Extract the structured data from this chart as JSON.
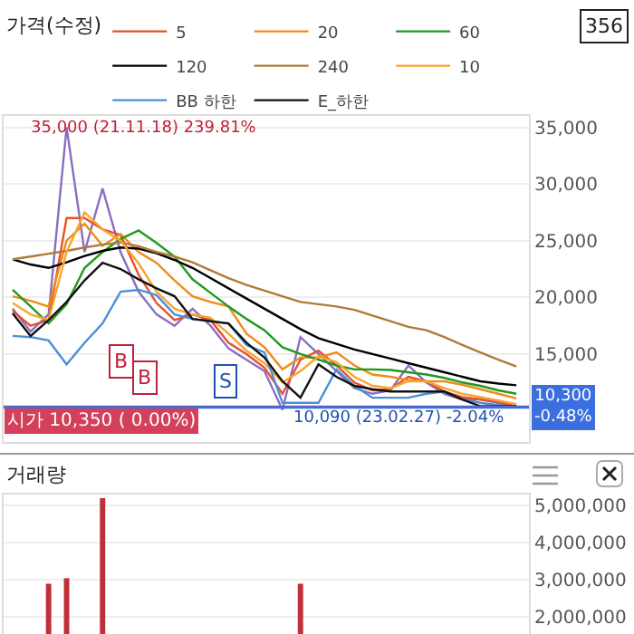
{
  "chart_data": [
    {
      "type": "line",
      "title": "가격(수정)",
      "categories": [
        null,
        null,
        null,
        null,
        null,
        null,
        null,
        null,
        null,
        null,
        null,
        null,
        null,
        null,
        null,
        null,
        null,
        null,
        null,
        null,
        null,
        null,
        null,
        null,
        null,
        null,
        null,
        null,
        null
      ],
      "series": [
        {
          "color": "#8a6fc0",
          "values": [
            19000,
            17000,
            18500,
            35000,
            24000,
            29600,
            24000,
            20500,
            18500,
            17500,
            19000,
            17500,
            15500,
            14500,
            13500,
            10090,
            16500,
            15000,
            13500,
            12000,
            11500,
            11800,
            14000,
            12500,
            11500,
            11000,
            11000,
            10700,
            10300
          ]
        },
        {
          "name": "5",
          "color": "#e8502a",
          "values": [
            18800,
            17500,
            18000,
            27000,
            27000,
            26000,
            25500,
            22000,
            19500,
            18000,
            18500,
            18000,
            16000,
            15000,
            13800,
            11500,
            14500,
            15300,
            14000,
            12500,
            11800,
            11900,
            13000,
            12600,
            11700,
            11200,
            11000,
            10800,
            10400
          ]
        },
        {
          "name": "20",
          "color": "#f08c1a",
          "values": [
            20100,
            19700,
            19200,
            25000,
            26500,
            24550,
            25600,
            24000,
            23050,
            21500,
            20100,
            19600,
            19200,
            16800,
            15600,
            13650,
            14700,
            14700,
            15150,
            14000,
            13200,
            13000,
            12700,
            12600,
            12600,
            12300,
            11900,
            11500,
            11100
          ]
        },
        {
          "name": "60",
          "color": "#1f9a1f",
          "values": [
            20670,
            19200,
            17700,
            19400,
            22600,
            24000,
            25150,
            25900,
            24800,
            23600,
            21600,
            20400,
            19200,
            18100,
            17100,
            15600,
            15000,
            14500,
            14000,
            13650,
            13650,
            13600,
            13400,
            13200,
            12900,
            12500,
            12200,
            11800,
            11500
          ]
        },
        {
          "name": "120",
          "color": "#000000",
          "values": [
            23360,
            22900,
            22600,
            23100,
            23650,
            24100,
            24400,
            24300,
            23900,
            23300,
            22600,
            21700,
            20800,
            19900,
            19000,
            18100,
            17200,
            16400,
            15900,
            15400,
            15000,
            14600,
            14200,
            13800,
            13400,
            13000,
            12600,
            12400,
            12250
          ]
        },
        {
          "name": "240",
          "color": "#b07a3a",
          "values": [
            23360,
            23600,
            23850,
            24100,
            24400,
            24650,
            24850,
            24500,
            24000,
            23600,
            23100,
            22400,
            21700,
            21100,
            20600,
            20100,
            19600,
            19400,
            19200,
            18900,
            18400,
            17900,
            17400,
            17100,
            16500,
            15800,
            15150,
            14500,
            13900
          ]
        },
        {
          "name": "10",
          "color": "#f7a531",
          "values": [
            19500,
            18500,
            18000,
            24000,
            27500,
            26000,
            25000,
            23000,
            20500,
            19000,
            18500,
            18200,
            16800,
            15300,
            14200,
            12500,
            13500,
            14800,
            14300,
            13000,
            12200,
            12000,
            12600,
            12600,
            12000,
            11500,
            11200,
            10900,
            10600
          ]
        },
        {
          "name": "BB 하한",
          "color": "#4a90d9",
          "values": [
            16600,
            16500,
            16200,
            14100,
            16000,
            17700,
            20500,
            20670,
            20200,
            18500,
            18100,
            17900,
            17700,
            15800,
            15150,
            10700,
            10700,
            10700,
            13650,
            12200,
            11150,
            11150,
            11150,
            11500,
            11700,
            11000,
            10700,
            10500,
            10300
          ]
        },
        {
          "name": "E_하한",
          "color": "#111111",
          "values": [
            18600,
            16600,
            18000,
            19600,
            21500,
            23050,
            22500,
            21600,
            20800,
            20100,
            18100,
            17900,
            17700,
            16000,
            14700,
            12600,
            11150,
            14100,
            13000,
            12200,
            11900,
            11700,
            11700,
            11700,
            11700,
            11000,
            10400,
            10400,
            10400
          ]
        }
      ],
      "ylim": [
        7250,
        36000
      ],
      "yticks": [
        {
          "value": 15000,
          "label": "15,000"
        },
        {
          "value": 20000,
          "label": "20,000"
        },
        {
          "value": 25000,
          "label": "25,000"
        },
        {
          "value": 30000,
          "label": "30,000"
        },
        {
          "value": 35000,
          "label": "35,000"
        }
      ],
      "grid": "y",
      "legend": "top",
      "tick_labels": "y",
      "ref_lines": [
        {
          "axis": "y",
          "value": 10350,
          "label": "시가 10,350 ( 0.00%)",
          "color": "#d4405a"
        },
        {
          "axis": "y",
          "value": 10300,
          "label": "10,300 -0.48%",
          "color": "#3b6fe0"
        }
      ],
      "annotations": [
        "35,000 (21.11.18) 239.81%",
        "10,090 (23.02.27) -2.04%",
        "356",
        "B",
        "B",
        "S"
      ]
    },
    {
      "type": "bar",
      "title": "거래량",
      "categories": [
        null,
        null,
        null,
        null,
        null,
        null,
        null,
        null,
        null,
        null,
        null,
        null,
        null,
        null,
        null,
        null,
        null,
        null,
        null,
        null,
        null,
        null,
        null,
        null,
        null,
        null,
        null,
        null,
        null
      ],
      "series": [
        {
          "color": "#c0303a",
          "values": [
            null,
            null,
            2900000,
            3050000,
            null,
            5200000,
            null,
            null,
            null,
            null,
            null,
            null,
            null,
            null,
            null,
            null,
            2900000,
            null,
            null,
            null,
            null,
            null,
            null,
            null,
            null,
            null,
            null,
            null,
            null
          ]
        }
      ],
      "ylim": [
        1500000,
        5300000
      ],
      "yticks": [
        {
          "value": 2000000,
          "label": "2,000,000"
        },
        {
          "value": 3000000,
          "label": "3,000,000"
        },
        {
          "value": 4000000,
          "label": "4,000,000"
        },
        {
          "value": 5000000,
          "label": "5,000,000"
        }
      ],
      "grid": "y",
      "tick_labels": "y"
    }
  ]
}
